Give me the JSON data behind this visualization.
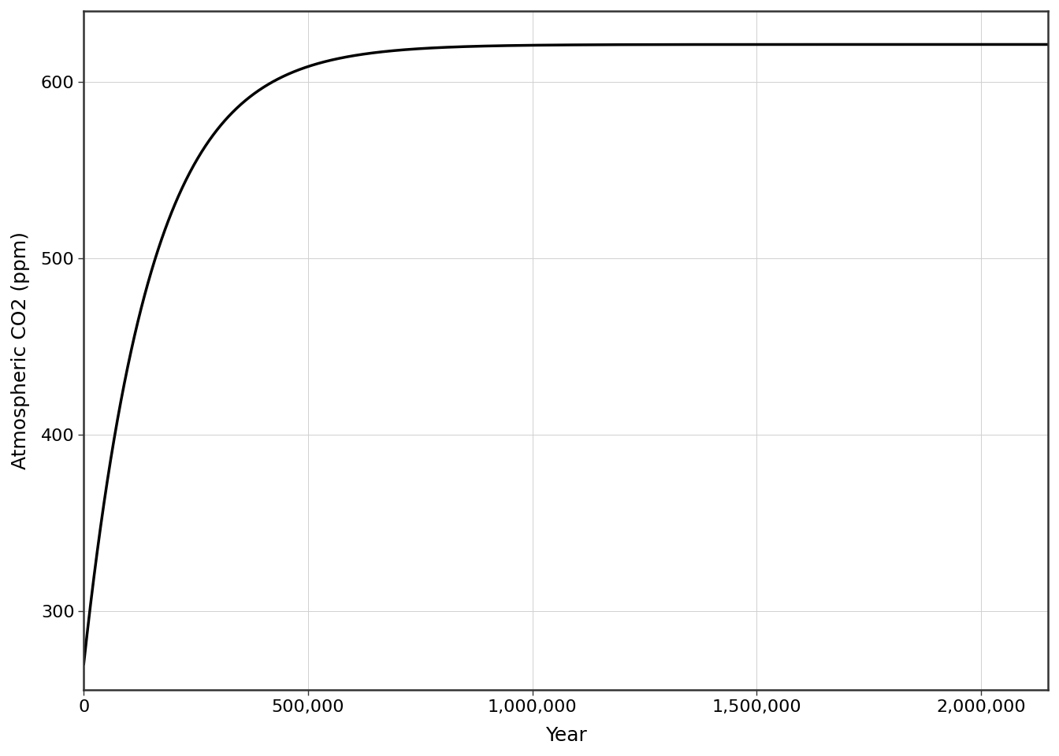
{
  "xlabel": "Year",
  "ylabel": "Atmospheric CO2 (ppm)",
  "xlim": [
    0,
    2150000
  ],
  "ylim": [
    255,
    640
  ],
  "xticks": [
    0,
    500000,
    1000000,
    1500000,
    2000000
  ],
  "yticks": [
    300,
    400,
    500,
    600
  ],
  "co2_initial": 270,
  "co2_final": 621,
  "tau": 150000,
  "line_color": "#000000",
  "line_width": 2.5,
  "background_color": "#ffffff",
  "panel_background": "#ffffff",
  "grid_color": "#d0d0d0",
  "grid_linewidth": 0.7,
  "axis_linewidth": 1.8,
  "label_fontsize": 18,
  "tick_fontsize": 16,
  "n_points": 2000
}
